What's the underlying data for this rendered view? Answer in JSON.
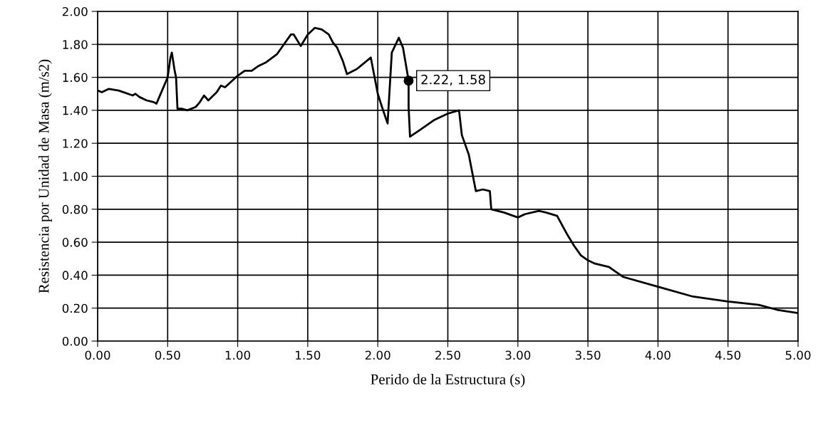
{
  "chart_data": {
    "type": "line",
    "xlabel": "Perido de la Estructura (s)",
    "ylabel": "Resistencia por Unidad de Masa (m/s2)",
    "x": [
      0.0,
      0.03,
      0.08,
      0.15,
      0.25,
      0.27,
      0.3,
      0.35,
      0.4,
      0.42,
      0.5,
      0.52,
      0.53,
      0.55,
      0.56,
      0.57,
      0.6,
      0.64,
      0.7,
      0.73,
      0.76,
      0.79,
      0.85,
      0.88,
      0.91,
      1.0,
      1.05,
      1.1,
      1.15,
      1.2,
      1.28,
      1.33,
      1.38,
      1.4,
      1.45,
      1.5,
      1.55,
      1.6,
      1.65,
      1.68,
      1.71,
      1.75,
      1.78,
      1.85,
      1.95,
      2.0,
      2.03,
      2.07,
      2.1,
      2.15,
      2.18,
      2.2,
      2.22,
      2.22,
      2.23,
      2.3,
      2.4,
      2.5,
      2.58,
      2.6,
      2.65,
      2.7,
      2.75,
      2.8,
      2.81,
      2.9,
      3.0,
      3.05,
      3.15,
      3.2,
      3.28,
      3.35,
      3.4,
      3.45,
      3.5,
      3.55,
      3.65,
      3.75,
      4.0,
      4.25,
      4.5,
      4.72,
      4.85,
      5.0
    ],
    "series": [
      {
        "color": "#000000",
        "values": [
          1.52,
          1.51,
          1.53,
          1.52,
          1.49,
          1.5,
          1.48,
          1.46,
          1.45,
          1.44,
          1.6,
          1.72,
          1.75,
          1.64,
          1.6,
          1.41,
          1.41,
          1.4,
          1.42,
          1.45,
          1.49,
          1.46,
          1.51,
          1.55,
          1.54,
          1.61,
          1.64,
          1.64,
          1.67,
          1.69,
          1.74,
          1.8,
          1.86,
          1.86,
          1.79,
          1.86,
          1.9,
          1.89,
          1.86,
          1.81,
          1.78,
          1.7,
          1.62,
          1.65,
          1.72,
          1.5,
          1.42,
          1.32,
          1.75,
          1.84,
          1.78,
          1.68,
          1.58,
          1.42,
          1.24,
          1.28,
          1.34,
          1.38,
          1.4,
          1.25,
          1.13,
          0.91,
          0.92,
          0.91,
          0.8,
          0.78,
          0.75,
          0.77,
          0.79,
          0.78,
          0.76,
          0.65,
          0.58,
          0.52,
          0.49,
          0.47,
          0.45,
          0.39,
          0.33,
          0.27,
          0.24,
          0.22,
          0.19,
          0.17
        ]
      }
    ],
    "annotations": [
      {
        "text": "2.22, 1.58",
        "x": 2.22,
        "y": 1.58
      }
    ],
    "xlim": [
      0,
      5
    ],
    "xticks": [
      {
        "value": 0,
        "label": "0.00"
      },
      {
        "value": 0.5,
        "label": "0.50"
      },
      {
        "value": 1,
        "label": "1.00"
      },
      {
        "value": 1.5,
        "label": "1.50"
      },
      {
        "value": 2,
        "label": "2.00"
      },
      {
        "value": 2.5,
        "label": "2.50"
      },
      {
        "value": 3,
        "label": "3.00"
      },
      {
        "value": 3.5,
        "label": "3.50"
      },
      {
        "value": 4,
        "label": "4.00"
      },
      {
        "value": 4.5,
        "label": "4.50"
      },
      {
        "value": 5,
        "label": "5.00"
      }
    ],
    "ylim": [
      0,
      2
    ],
    "yticks": [
      {
        "value": 0,
        "label": "0.00"
      },
      {
        "value": 0.2,
        "label": "0.20"
      },
      {
        "value": 0.4,
        "label": "0.40"
      },
      {
        "value": 0.6,
        "label": "0.60"
      },
      {
        "value": 0.8,
        "label": "0.80"
      },
      {
        "value": 1,
        "label": "1.00"
      },
      {
        "value": 1.2,
        "label": "1.20"
      },
      {
        "value": 1.4,
        "label": "1.40"
      },
      {
        "value": 1.6,
        "label": "1.60"
      },
      {
        "value": 1.8,
        "label": "1.80"
      },
      {
        "value": 2,
        "label": "2.00"
      }
    ],
    "grid": true,
    "marker": "none",
    "line_style": "solid",
    "legend": false
  }
}
